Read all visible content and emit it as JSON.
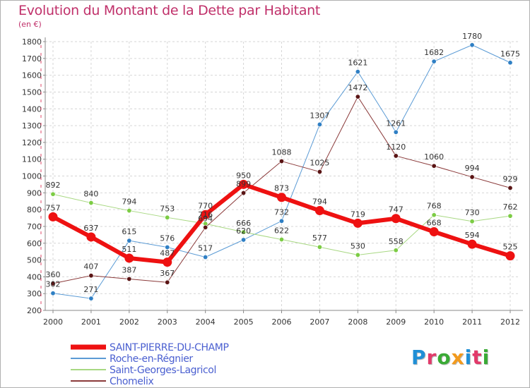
{
  "title": "Evolution du Montant de la Dette par Habitant",
  "subtitle": "(en €)",
  "logo": {
    "text": "Proxiti",
    "colors": [
      "#1f8fd6",
      "#e23a6a",
      "#3aaa35",
      "#f29a1d",
      "#1f8fd6",
      "#e23a6a",
      "#3aaa35"
    ]
  },
  "chart_data": {
    "type": "line",
    "title": "Evolution du Montant de la Dette par Habitant",
    "subtitle": "(en €)",
    "x": [
      "2000",
      "2001",
      "2002",
      "2003",
      "2004",
      "2005",
      "2006",
      "2007",
      "2008",
      "2009",
      "2010",
      "2011",
      "2012"
    ],
    "ylim": [
      200,
      1800
    ],
    "yticks": [
      200,
      300,
      400,
      500,
      600,
      700,
      800,
      900,
      1000,
      1100,
      1200,
      1300,
      1400,
      1500,
      1600,
      1700,
      1800
    ],
    "grid": true,
    "legend_position": "bottom-left",
    "series": [
      {
        "name": "SAINT-PIERRE-DU-CHAMP",
        "color": "#ee1111",
        "marker": "#ee1111",
        "width": 6,
        "labelColor": "#333333",
        "values": [
          757,
          637,
          511,
          487,
          770,
          950,
          873,
          794,
          719,
          747,
          668,
          594,
          525
        ],
        "labels": [
          "757",
          "637",
          "511",
          "487",
          "770",
          "950",
          "873",
          "794",
          "719",
          "747",
          "668",
          "594",
          "525"
        ]
      },
      {
        "name": "Roche-en-Régnier",
        "color": "#5b9bd5",
        "marker": "#2f7fc4",
        "width": 1,
        "labelColor": "#333333",
        "values": [
          302,
          271,
          615,
          576,
          517,
          620,
          732,
          1307,
          1621,
          1261,
          1682,
          1780,
          1675
        ],
        "labels": [
          "302",
          "271",
          "615",
          "576",
          "517",
          "620",
          "732",
          "1307",
          "1621",
          "1261",
          "1682",
          "1780",
          "1675"
        ]
      },
      {
        "name": "Saint-Georges-Lagricol",
        "color": "#a8d882",
        "marker": "#7ccc44",
        "width": 1,
        "labelColor": "#333333",
        "values": [
          892,
          840,
          794,
          753,
          716,
          666,
          622,
          577,
          530,
          558,
          768,
          730,
          762
        ],
        "labels": [
          "892",
          "840",
          "794",
          "753",
          "716",
          "666",
          "622",
          "577",
          "530",
          "558",
          "768",
          "730",
          "762"
        ]
      },
      {
        "name": "Chomelix",
        "color": "#8b3a3a",
        "marker": "#5a1414",
        "width": 1,
        "labelColor": "#333333",
        "values": [
          360,
          407,
          387,
          367,
          694,
          899,
          1088,
          1025,
          1472,
          1120,
          1060,
          994,
          929
        ],
        "labels": [
          "360",
          "407",
          "387",
          "367",
          "694",
          "899",
          "1088",
          "1025",
          "1472",
          "1120",
          "1060",
          "994",
          "929"
        ]
      }
    ]
  }
}
